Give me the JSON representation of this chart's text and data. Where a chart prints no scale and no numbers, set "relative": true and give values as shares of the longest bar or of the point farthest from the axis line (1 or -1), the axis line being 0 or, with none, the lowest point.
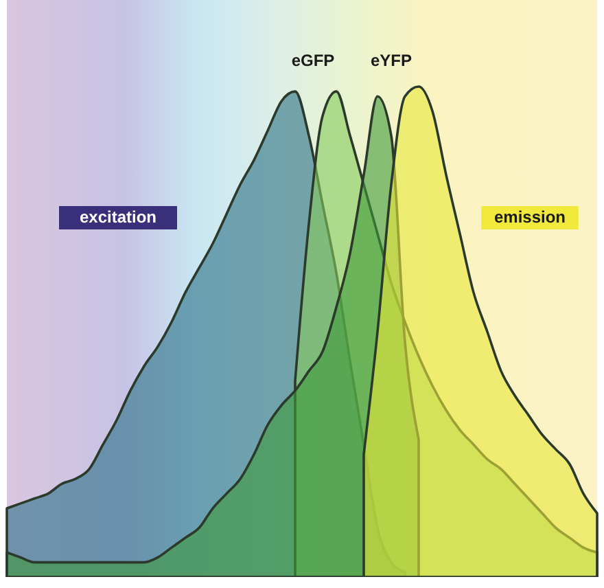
{
  "chart_data": {
    "type": "area",
    "relative": true,
    "categories": [
      null,
      null,
      null,
      null,
      null,
      null,
      null,
      null,
      null,
      null,
      null,
      null,
      null,
      null,
      null,
      null,
      null,
      null,
      null,
      null,
      null,
      null,
      null,
      null,
      null,
      null,
      null,
      null,
      null,
      null,
      null,
      null,
      null,
      null,
      null,
      null,
      null,
      null,
      null,
      null,
      null,
      null,
      null,
      null
    ],
    "series": [
      {
        "color": "#2a6f86",
        "values": [
          0.14,
          0.15,
          0.16,
          0.17,
          0.19,
          0.2,
          0.22,
          0.27,
          0.32,
          0.38,
          0.43,
          0.47,
          0.52,
          0.58,
          0.63,
          0.68,
          0.74,
          0.8,
          0.85,
          0.91,
          0.97,
          0.99,
          0.9,
          0.76,
          0.62,
          0.44,
          0.27,
          0.1,
          0.03,
          0.01,
          null,
          null,
          null,
          null,
          null,
          null,
          null,
          null,
          null,
          null,
          null,
          null,
          null,
          null
        ]
      },
      {
        "color": "#86cc5e",
        "values": [
          null,
          null,
          null,
          null,
          null,
          null,
          null,
          null,
          null,
          null,
          null,
          null,
          null,
          null,
          null,
          null,
          null,
          null,
          null,
          null,
          null,
          0.4,
          0.72,
          0.94,
          0.99,
          0.9,
          0.8,
          0.7,
          0.6,
          0.52,
          0.45,
          0.39,
          0.34,
          0.3,
          0.27,
          0.24,
          0.22,
          0.19,
          0.16,
          0.13,
          0.1,
          0.08,
          0.06,
          0.05
        ]
      },
      {
        "color": "#3f9a3a",
        "values": [
          0.05,
          0.04,
          0.03,
          0.03,
          0.03,
          0.03,
          0.03,
          0.03,
          0.03,
          0.03,
          0.03,
          0.04,
          0.06,
          0.08,
          0.1,
          0.14,
          0.17,
          0.2,
          0.25,
          0.31,
          0.35,
          0.38,
          0.42,
          0.46,
          0.55,
          0.66,
          0.82,
          0.98,
          0.9,
          0.48,
          0.28,
          null,
          null,
          null,
          null,
          null,
          null,
          null,
          null,
          null,
          null,
          null,
          null,
          null
        ]
      },
      {
        "color": "#e8e63a",
        "values": [
          null,
          null,
          null,
          null,
          null,
          null,
          null,
          null,
          null,
          null,
          null,
          null,
          null,
          null,
          null,
          null,
          null,
          null,
          null,
          null,
          null,
          null,
          null,
          null,
          null,
          null,
          0.25,
          0.5,
          0.8,
          0.98,
          1,
          0.95,
          0.82,
          0.7,
          0.58,
          0.5,
          0.42,
          0.37,
          0.33,
          0.29,
          0.26,
          0.23,
          0.17,
          0.13
        ]
      }
    ],
    "annotations": [
      "eGFP",
      "eYFP",
      "excitation",
      "emission"
    ]
  }
}
